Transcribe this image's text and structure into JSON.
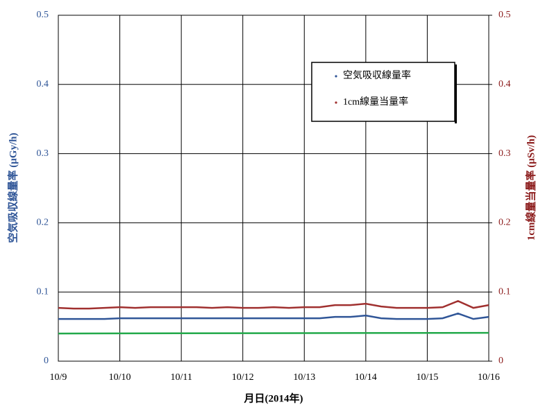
{
  "chart_data": {
    "type": "line",
    "x_label": "月日(2014年)",
    "y_label": "空気吸収線量率 (μGy/h)",
    "y2_label": "1cm線量当量率 (μSv/h)",
    "xlim": [
      0,
      7
    ],
    "xticks": [
      {
        "value": 0,
        "label": "10/9"
      },
      {
        "value": 1,
        "label": "10/10"
      },
      {
        "value": 2,
        "label": "10/11"
      },
      {
        "value": 3,
        "label": "10/12"
      },
      {
        "value": 4,
        "label": "10/13"
      },
      {
        "value": 5,
        "label": "10/14"
      },
      {
        "value": 6,
        "label": "10/15"
      },
      {
        "value": 7,
        "label": "10/16"
      }
    ],
    "ylim": [
      0,
      0.5
    ],
    "yticks": [
      0,
      0.1,
      0.2,
      0.3,
      0.4,
      0.5
    ],
    "y2lim": [
      0,
      0.5
    ],
    "y2ticks": [
      0,
      0.1,
      0.2,
      0.3,
      0.4,
      0.5
    ],
    "grid": true,
    "y_color": "#2f5597",
    "y2_color": "#8b1a1a",
    "series": [
      {
        "name": "空気吸収線量率",
        "color": "#2f5597",
        "x": [
          0,
          0.25,
          0.5,
          0.75,
          1,
          1.25,
          1.5,
          1.75,
          2,
          2.25,
          2.5,
          2.75,
          3,
          3.25,
          3.5,
          3.75,
          4,
          4.25,
          4.5,
          4.75,
          5,
          5.25,
          5.5,
          5.75,
          6,
          6.25,
          6.5,
          6.75,
          7
        ],
        "values": [
          0.061,
          0.061,
          0.061,
          0.061,
          0.062,
          0.062,
          0.062,
          0.062,
          0.062,
          0.062,
          0.062,
          0.062,
          0.062,
          0.062,
          0.062,
          0.062,
          0.062,
          0.062,
          0.064,
          0.064,
          0.066,
          0.062,
          0.061,
          0.061,
          0.061,
          0.062,
          0.069,
          0.061,
          0.064
        ]
      },
      {
        "name": "1cm線量当量率",
        "color": "#a0302f",
        "axis": "y2",
        "x": [
          0,
          0.25,
          0.5,
          0.75,
          1,
          1.25,
          1.5,
          1.75,
          2,
          2.25,
          2.5,
          2.75,
          3,
          3.25,
          3.5,
          3.75,
          4,
          4.25,
          4.5,
          4.75,
          5,
          5.25,
          5.5,
          5.75,
          6,
          6.25,
          6.5,
          6.75,
          7
        ],
        "values": [
          0.077,
          0.076,
          0.076,
          0.077,
          0.078,
          0.077,
          0.078,
          0.078,
          0.078,
          0.078,
          0.077,
          0.078,
          0.077,
          0.077,
          0.078,
          0.077,
          0.078,
          0.078,
          0.081,
          0.081,
          0.083,
          0.079,
          0.077,
          0.077,
          0.077,
          0.078,
          0.087,
          0.077,
          0.081
        ]
      },
      {
        "color": "#22a94a",
        "x": [
          0,
          7
        ],
        "values": [
          0.04,
          0.041
        ]
      }
    ]
  }
}
